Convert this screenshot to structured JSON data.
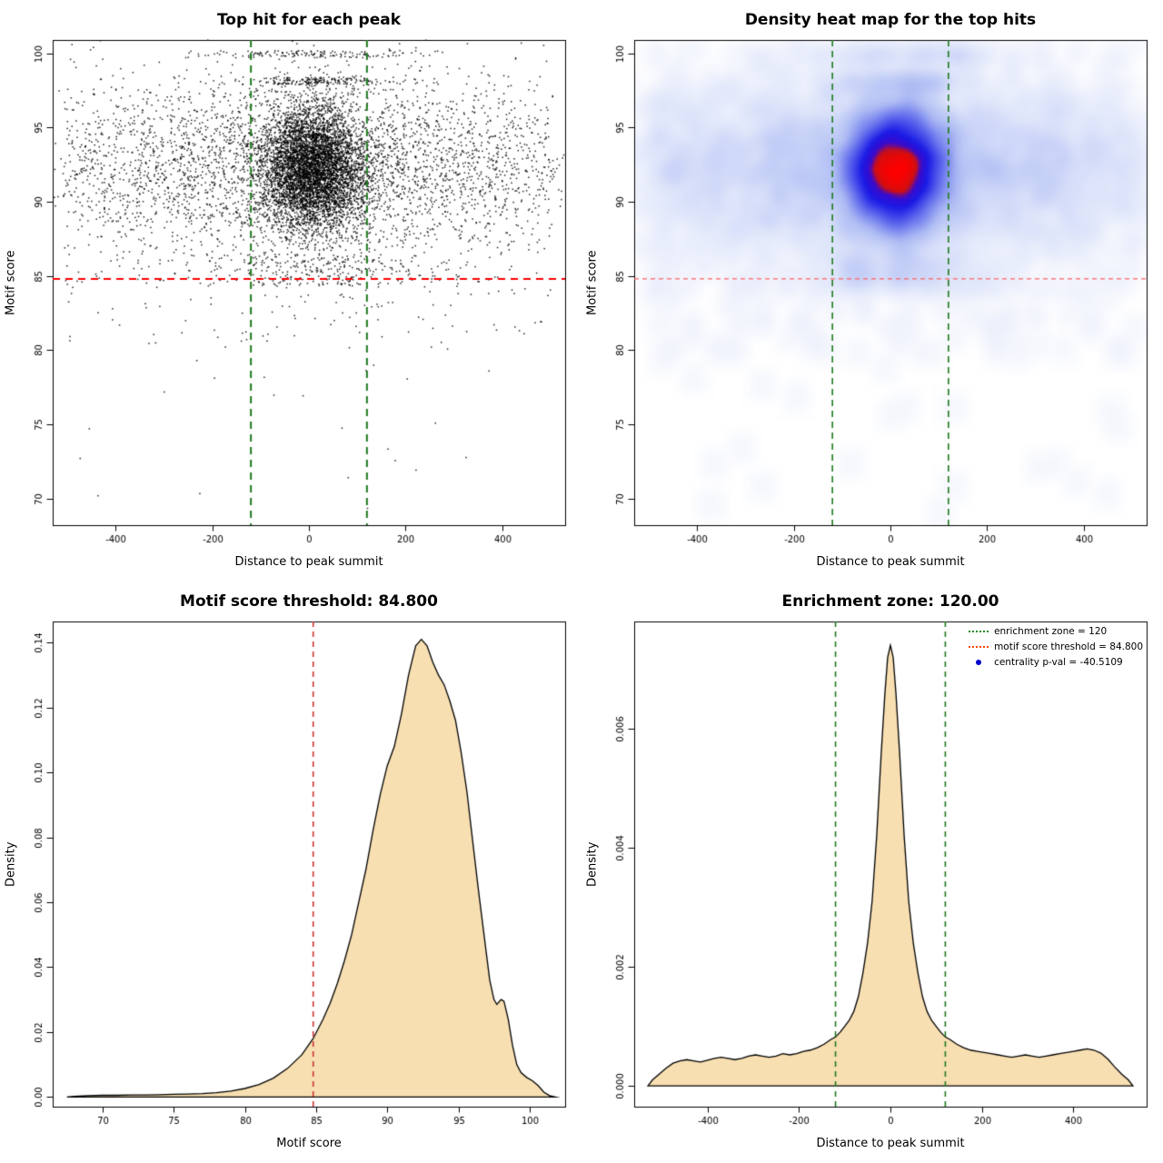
{
  "page": {
    "background": "#ffffff"
  },
  "chart_data": [
    {
      "id": "top-hits-scatter",
      "type": "scatter",
      "title": "Top hit for each peak",
      "xlabel": "Distance to peak summit",
      "ylabel": "Motif score",
      "xlim": [
        -530,
        530
      ],
      "ylim": [
        68.2,
        100.9
      ],
      "xticks": [
        -400,
        -200,
        0,
        200,
        400
      ],
      "xtick_labels": [
        "-400",
        "-200",
        "0",
        "200",
        "400"
      ],
      "yticks": [
        70,
        75,
        80,
        85,
        90,
        95,
        100
      ],
      "ytick_labels": [
        "70",
        "75",
        "80",
        "85",
        "90",
        "95",
        "100"
      ],
      "point_color": "#000000",
      "hline": {
        "y": 84.8,
        "color": "#FF0000",
        "width": 2,
        "dash": [
          8,
          6
        ]
      },
      "vlines": [
        {
          "x": -120,
          "color": "#1E7A1E",
          "width": 2,
          "dash": [
            8,
            6
          ]
        },
        {
          "x": 120,
          "color": "#1E7A1E",
          "width": 2,
          "dash": [
            8,
            6
          ]
        }
      ],
      "seed": 42,
      "point_groups": [
        {
          "n": 5200,
          "x": {
            "dist": "normal",
            "mean": 8,
            "sd": 52
          },
          "y": {
            "dist": "normal",
            "mean": 92.2,
            "sd": 2.1
          }
        },
        {
          "n": 2600,
          "x": {
            "dist": "normal",
            "mean": 0,
            "sd": 265
          },
          "y": {
            "dist": "normal",
            "mean": 92.4,
            "sd": 2.9
          }
        },
        {
          "n": 1500,
          "x": {
            "dist": "uniform",
            "min": -505,
            "max": 505
          },
          "y": {
            "dist": "normal",
            "mean": 92.3,
            "sd": 3.4
          }
        },
        {
          "n": 260,
          "x": {
            "dist": "normal",
            "mean": 5,
            "sd": 130
          },
          "y": {
            "dist": "uniform",
            "min": 84.3,
            "max": 86.5
          }
        },
        {
          "n": 90,
          "x": {
            "dist": "uniform",
            "min": -500,
            "max": 500
          },
          "y": {
            "dist": "uniform",
            "min": 80,
            "max": 85
          }
        },
        {
          "n": 22,
          "x": {
            "dist": "uniform",
            "min": -480,
            "max": 480
          },
          "y": {
            "dist": "uniform",
            "min": 69,
            "max": 80
          }
        },
        {
          "n": 170,
          "x": {
            "dist": "normal",
            "mean": 15,
            "sd": 75
          },
          "y": {
            "dist": "uniform",
            "min": 97.9,
            "max": 98.4
          }
        },
        {
          "n": 150,
          "x": {
            "dist": "normal",
            "mean": 10,
            "sd": 130
          },
          "y": {
            "dist": "uniform",
            "min": 99.7,
            "max": 100.2
          }
        }
      ]
    },
    {
      "id": "top-hits-heatmap",
      "type": "heatmap",
      "title": "Density heat map for the top hits",
      "xlabel": "Distance to peak summit",
      "ylabel": "Motif score",
      "xlim": [
        -530,
        530
      ],
      "ylim": [
        68.2,
        100.9
      ],
      "xticks": [
        -400,
        -200,
        0,
        200,
        400
      ],
      "xtick_labels": [
        "-400",
        "-200",
        "0",
        "200",
        "400"
      ],
      "yticks": [
        70,
        75,
        80,
        85,
        90,
        95,
        100
      ],
      "ytick_labels": [
        "70",
        "75",
        "80",
        "85",
        "90",
        "95",
        "100"
      ],
      "hline": {
        "y": 84.8,
        "color": "#FF6060",
        "width": 1.2,
        "dash": [
          5,
          4
        ]
      },
      "vlines": [
        {
          "x": -120,
          "color": "#1E7A1E",
          "width": 1.6,
          "dash": [
            7,
            5
          ]
        },
        {
          "x": 120,
          "color": "#1E7A1E",
          "width": 1.6,
          "dash": [
            7,
            5
          ]
        }
      ],
      "seed": 99,
      "uses_points_from": "top-hits-scatter",
      "density_power": 0.5,
      "colormap": [
        [
          0.0,
          "#FFFFFF"
        ],
        [
          0.06,
          "#F4F6FD"
        ],
        [
          0.18,
          "#DDE4FA"
        ],
        [
          0.35,
          "#AEBCF4"
        ],
        [
          0.55,
          "#5A64EC"
        ],
        [
          0.72,
          "#1A1AE6"
        ],
        [
          0.84,
          "#3A0ACD"
        ],
        [
          0.9,
          "#D01010"
        ],
        [
          1.0,
          "#FF0000"
        ]
      ]
    },
    {
      "id": "motif-score-density",
      "type": "area",
      "title": "Motif score threshold: 84.800",
      "xlabel": "Motif score",
      "ylabel": "Density",
      "xlim": [
        66.5,
        102.5
      ],
      "ylim": [
        -0.003,
        0.1465
      ],
      "xticks": [
        70,
        75,
        80,
        85,
        90,
        95,
        100
      ],
      "xtick_labels": [
        "70",
        "75",
        "80",
        "85",
        "90",
        "95",
        "100"
      ],
      "yticks": [
        0,
        0.02,
        0.04,
        0.06,
        0.08,
        0.1,
        0.12,
        0.14
      ],
      "ytick_labels": [
        "0.00",
        "0.02",
        "0.04",
        "0.06",
        "0.08",
        "0.10",
        "0.12",
        "0.14"
      ],
      "fill": "#F7DFB2",
      "stroke": "#000000",
      "vlines": [
        {
          "x": 84.8,
          "color": "#CD3333",
          "width": 1.6,
          "dash": [
            6,
            5
          ]
        }
      ],
      "curve": [
        [
          67.5,
          0
        ],
        [
          68,
          0.0002
        ],
        [
          69,
          0.0004
        ],
        [
          70,
          0.0005
        ],
        [
          71,
          0.0005
        ],
        [
          72,
          0.0006
        ],
        [
          73,
          0.0006
        ],
        [
          74,
          0.0007
        ],
        [
          75,
          0.0008
        ],
        [
          76,
          0.0009
        ],
        [
          77,
          0.001
        ],
        [
          78,
          0.0013
        ],
        [
          79,
          0.0018
        ],
        [
          80,
          0.0026
        ],
        [
          81,
          0.0038
        ],
        [
          82,
          0.0058
        ],
        [
          83,
          0.0088
        ],
        [
          84,
          0.013
        ],
        [
          84.8,
          0.018
        ],
        [
          85.5,
          0.024
        ],
        [
          86,
          0.029
        ],
        [
          86.5,
          0.035
        ],
        [
          87,
          0.042
        ],
        [
          87.5,
          0.05
        ],
        [
          88,
          0.06
        ],
        [
          88.5,
          0.07
        ],
        [
          89,
          0.082
        ],
        [
          89.5,
          0.093
        ],
        [
          90,
          0.102
        ],
        [
          90.5,
          0.108
        ],
        [
          91,
          0.118
        ],
        [
          91.5,
          0.13
        ],
        [
          92,
          0.139
        ],
        [
          92.4,
          0.141
        ],
        [
          92.8,
          0.139
        ],
        [
          93.2,
          0.134
        ],
        [
          93.6,
          0.13
        ],
        [
          94,
          0.127
        ],
        [
          94.4,
          0.122
        ],
        [
          94.8,
          0.116
        ],
        [
          95.2,
          0.106
        ],
        [
          95.6,
          0.094
        ],
        [
          96,
          0.079
        ],
        [
          96.4,
          0.064
        ],
        [
          96.8,
          0.05
        ],
        [
          97.2,
          0.036
        ],
        [
          97.5,
          0.03
        ],
        [
          97.7,
          0.0285
        ],
        [
          98,
          0.03
        ],
        [
          98.2,
          0.0295
        ],
        [
          98.5,
          0.024
        ],
        [
          98.8,
          0.016
        ],
        [
          99.1,
          0.01
        ],
        [
          99.4,
          0.0075
        ],
        [
          99.8,
          0.006
        ],
        [
          100.2,
          0.005
        ],
        [
          100.6,
          0.0035
        ],
        [
          101,
          0.0015
        ],
        [
          101.4,
          0.0004
        ],
        [
          101.8,
          0
        ]
      ]
    },
    {
      "id": "summit-distance-density",
      "type": "area",
      "title": "Enrichment zone: 120.00",
      "xlabel": "Distance to peak summit",
      "ylabel": "Density",
      "xlim": [
        -560,
        560
      ],
      "ylim": [
        -0.00035,
        0.0078
      ],
      "xticks": [
        -400,
        -200,
        0,
        200,
        400
      ],
      "xtick_labels": [
        "-400",
        "-200",
        "0",
        "200",
        "400"
      ],
      "yticks": [
        0,
        0.002,
        0.004,
        0.006
      ],
      "ytick_labels": [
        "0.000",
        "0.002",
        "0.004",
        "0.006"
      ],
      "fill": "#F7DFB2",
      "stroke": "#000000",
      "vlines": [
        {
          "x": -120,
          "color": "#1E7A1E",
          "width": 1.6,
          "dash": [
            6,
            5
          ]
        },
        {
          "x": 120,
          "color": "#1E7A1E",
          "width": 1.6,
          "dash": [
            6,
            5
          ]
        }
      ],
      "curve": [
        [
          -530,
          0
        ],
        [
          -520,
          0.0001
        ],
        [
          -505,
          0.0002
        ],
        [
          -490,
          0.0003
        ],
        [
          -475,
          0.00038
        ],
        [
          -460,
          0.00042
        ],
        [
          -445,
          0.00044
        ],
        [
          -430,
          0.00042
        ],
        [
          -415,
          0.0004
        ],
        [
          -400,
          0.00043
        ],
        [
          -385,
          0.00046
        ],
        [
          -370,
          0.00048
        ],
        [
          -355,
          0.00046
        ],
        [
          -340,
          0.00044
        ],
        [
          -325,
          0.00046
        ],
        [
          -310,
          0.0005
        ],
        [
          -295,
          0.00052
        ],
        [
          -280,
          0.0005
        ],
        [
          -265,
          0.00048
        ],
        [
          -250,
          0.0005
        ],
        [
          -235,
          0.00054
        ],
        [
          -220,
          0.00052
        ],
        [
          -205,
          0.00054
        ],
        [
          -190,
          0.00058
        ],
        [
          -175,
          0.0006
        ],
        [
          -160,
          0.00064
        ],
        [
          -145,
          0.0007
        ],
        [
          -130,
          0.00078
        ],
        [
          -120,
          0.00082
        ],
        [
          -110,
          0.0009
        ],
        [
          -100,
          0.001
        ],
        [
          -90,
          0.0011
        ],
        [
          -80,
          0.00125
        ],
        [
          -70,
          0.0015
        ],
        [
          -60,
          0.0019
        ],
        [
          -50,
          0.0024
        ],
        [
          -40,
          0.0031
        ],
        [
          -30,
          0.0042
        ],
        [
          -20,
          0.0056
        ],
        [
          -12,
          0.0066
        ],
        [
          -6,
          0.0072
        ],
        [
          0,
          0.0074
        ],
        [
          6,
          0.0072
        ],
        [
          12,
          0.0066
        ],
        [
          20,
          0.0056
        ],
        [
          30,
          0.0042
        ],
        [
          40,
          0.0031
        ],
        [
          50,
          0.0024
        ],
        [
          60,
          0.0019
        ],
        [
          70,
          0.0015
        ],
        [
          80,
          0.00125
        ],
        [
          90,
          0.0011
        ],
        [
          100,
          0.001
        ],
        [
          110,
          0.0009
        ],
        [
          120,
          0.00082
        ],
        [
          130,
          0.00078
        ],
        [
          145,
          0.0007
        ],
        [
          160,
          0.00064
        ],
        [
          175,
          0.0006
        ],
        [
          190,
          0.00058
        ],
        [
          205,
          0.00056
        ],
        [
          220,
          0.00054
        ],
        [
          235,
          0.00052
        ],
        [
          250,
          0.0005
        ],
        [
          265,
          0.00048
        ],
        [
          280,
          0.0005
        ],
        [
          295,
          0.00052
        ],
        [
          310,
          0.0005
        ],
        [
          325,
          0.00048
        ],
        [
          340,
          0.0005
        ],
        [
          355,
          0.00052
        ],
        [
          370,
          0.00054
        ],
        [
          385,
          0.00056
        ],
        [
          400,
          0.00058
        ],
        [
          415,
          0.0006
        ],
        [
          430,
          0.00062
        ],
        [
          445,
          0.0006
        ],
        [
          460,
          0.00055
        ],
        [
          475,
          0.00045
        ],
        [
          490,
          0.00032
        ],
        [
          505,
          0.0002
        ],
        [
          520,
          0.0001
        ],
        [
          530,
          0
        ]
      ],
      "legend": [
        {
          "label": "enrichment zone = 120",
          "marker": "dotted-line",
          "color": "#228B22"
        },
        {
          "label": "motif score threshold = 84.800",
          "marker": "dotted-line",
          "color": "#FF4500"
        },
        {
          "label": "centrality p-val = -40.5109",
          "marker": "dot",
          "color": "#0000CD"
        }
      ]
    }
  ]
}
